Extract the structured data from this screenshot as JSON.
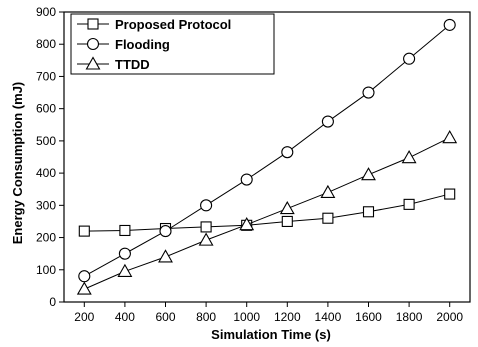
{
  "chart_data": {
    "type": "line",
    "x": [
      200,
      400,
      600,
      800,
      1000,
      1200,
      1400,
      1600,
      1800,
      2000
    ],
    "xlabel": "Simulation Time (s)",
    "ylabel": "Energy Consumption (mJ)",
    "xlim": [
      100,
      2100
    ],
    "ylim": [
      0,
      900
    ],
    "xticks": [
      "200",
      "400",
      "600",
      "800",
      "1000",
      "1200",
      "1400",
      "1600",
      "1800",
      "2000"
    ],
    "yticks": [
      "0",
      "100",
      "200",
      "300",
      "400",
      "500",
      "600",
      "700",
      "800",
      "900"
    ],
    "grid": false,
    "legend_position": "top-left",
    "series": [
      {
        "name": "Proposed Protocol",
        "marker": "square",
        "values": [
          220,
          222,
          228,
          233,
          238,
          250,
          260,
          280,
          303,
          335
        ]
      },
      {
        "name": "Flooding",
        "marker": "circle",
        "values": [
          80,
          150,
          220,
          300,
          380,
          465,
          560,
          650,
          755,
          860
        ]
      },
      {
        "name": "TTDD",
        "marker": "triangle",
        "values": [
          40,
          95,
          140,
          192,
          240,
          290,
          340,
          395,
          448,
          510
        ]
      }
    ]
  }
}
